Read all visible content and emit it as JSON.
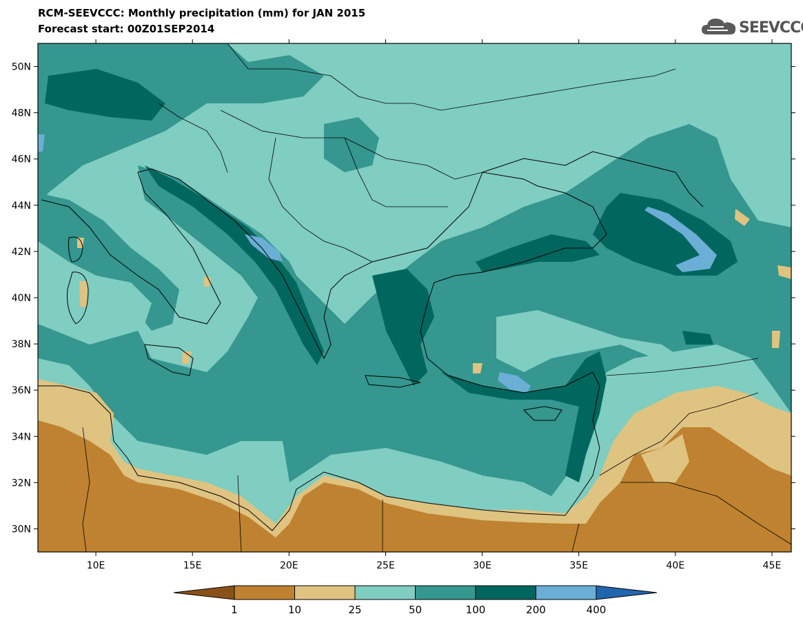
{
  "header": {
    "title_line1": "RCM-SEEVCCC: Monthly precipitation (mm) for JAN 2015",
    "title_line2": "Forecast start: 00Z01SEP2014"
  },
  "logo": {
    "text": "SEEVCCC",
    "icon": "cloud-icon",
    "color": "#5a5a5a"
  },
  "map": {
    "lat_ticks": [
      {
        "value": 30,
        "label": "30N"
      },
      {
        "value": 32,
        "label": "32N"
      },
      {
        "value": 34,
        "label": "34N"
      },
      {
        "value": 36,
        "label": "36N"
      },
      {
        "value": 38,
        "label": "38N"
      },
      {
        "value": 40,
        "label": "40N"
      },
      {
        "value": 42,
        "label": "42N"
      },
      {
        "value": 44,
        "label": "44N"
      },
      {
        "value": 46,
        "label": "46N"
      },
      {
        "value": 48,
        "label": "48N"
      },
      {
        "value": 50,
        "label": "50N"
      }
    ],
    "lon_ticks": [
      {
        "value": 10,
        "label": "10E"
      },
      {
        "value": 15,
        "label": "15E"
      },
      {
        "value": 20,
        "label": "20E"
      },
      {
        "value": 25,
        "label": "25E"
      },
      {
        "value": 30,
        "label": "30E"
      },
      {
        "value": 35,
        "label": "35E"
      },
      {
        "value": 40,
        "label": "40E"
      },
      {
        "value": 45,
        "label": "45E"
      }
    ],
    "lon_range": [
      7,
      46
    ],
    "lat_range": [
      29,
      51
    ]
  },
  "colorbar": {
    "labels": [
      "1",
      "10",
      "25",
      "50",
      "100",
      "200",
      "400"
    ],
    "colors": [
      "#8a5218",
      "#bf8230",
      "#dfc381",
      "#80cdc1",
      "#35978f",
      "#01665e",
      "#6baed6",
      "#2166ac"
    ]
  }
}
